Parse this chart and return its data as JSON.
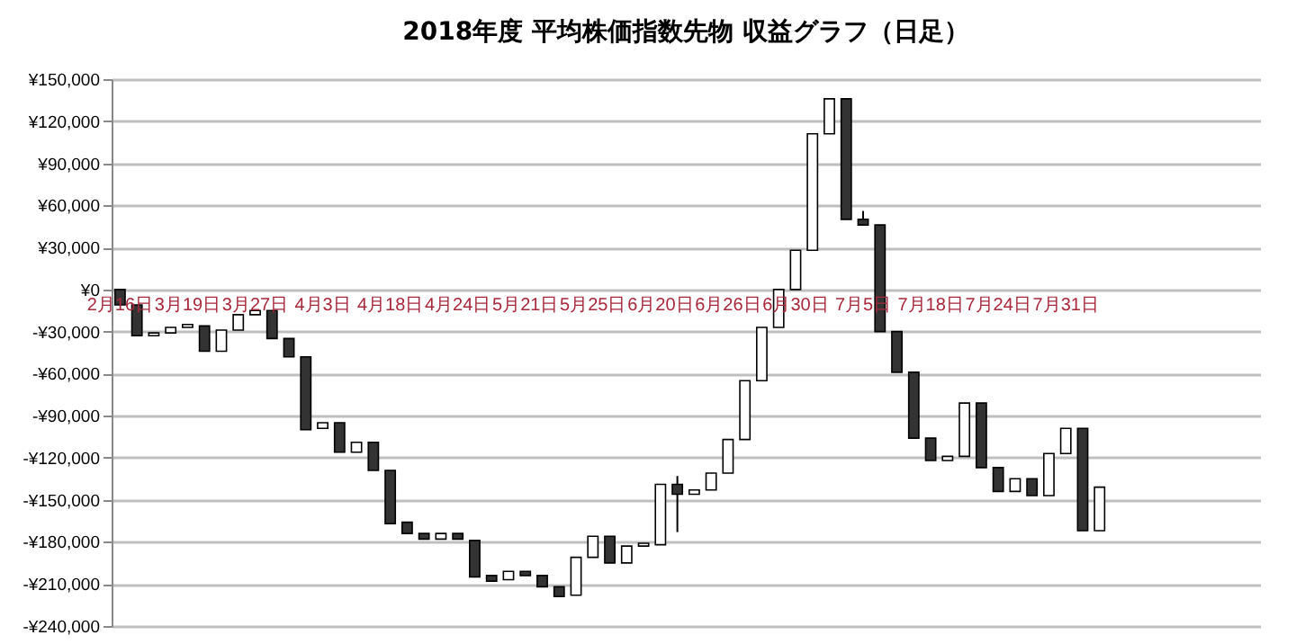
{
  "chart_data": {
    "type": "candlestick",
    "title": "2018年度 平均株価指数先物 収益グラフ（日足）",
    "categories": [
      "2月16日",
      null,
      null,
      null,
      "3月19日",
      null,
      null,
      null,
      "3月27日",
      null,
      null,
      null,
      "4月3日",
      null,
      null,
      null,
      "4月18日",
      null,
      null,
      null,
      "4月24日",
      null,
      null,
      null,
      "5月21日",
      null,
      null,
      null,
      "5月25日",
      null,
      null,
      null,
      "6月20日",
      null,
      null,
      null,
      "6月26日",
      null,
      null,
      null,
      "6月30日",
      null,
      null,
      null,
      "7月5日",
      null,
      null,
      null,
      "7月18日",
      null,
      null,
      null,
      "7月24日",
      null,
      null,
      null,
      "7月31日",
      null,
      null,
      null,
      null,
      null,
      null,
      null,
      null,
      null,
      null,
      null
    ],
    "ohlc": [
      [
        0,
        0,
        -11000,
        -11000
      ],
      [
        -11000,
        -11000,
        -33000,
        -33000
      ],
      [
        -33000,
        -31000,
        -33000,
        -31000
      ],
      [
        -31000,
        -27000,
        -31000,
        -27000
      ],
      [
        -27000,
        -25000,
        -27000,
        -25000
      ],
      [
        -26000,
        -26000,
        -44000,
        -44000
      ],
      [
        -44000,
        -29000,
        -44000,
        -29000
      ],
      [
        -29000,
        -18000,
        -29000,
        -18000
      ],
      [
        -18000,
        -15000,
        -18000,
        -15000
      ],
      [
        -15000,
        -15000,
        -35000,
        -35000
      ],
      [
        -35000,
        -35000,
        -48000,
        -48000
      ],
      [
        -48000,
        -48000,
        -100000,
        -100000
      ],
      [
        -99000,
        -95000,
        -99000,
        -95000
      ],
      [
        -95000,
        -95000,
        -116000,
        -116000
      ],
      [
        -116000,
        -109000,
        -116000,
        -109000
      ],
      [
        -109000,
        -109000,
        -129000,
        -129000
      ],
      [
        -129000,
        -129000,
        -167000,
        -167000
      ],
      [
        -166000,
        -166000,
        -174000,
        -174000
      ],
      [
        -174000,
        -174000,
        -178000,
        -178000
      ],
      [
        -178000,
        -174000,
        -178000,
        -174000
      ],
      [
        -174000,
        -174000,
        -178000,
        -178000
      ],
      [
        -179000,
        -179000,
        -205000,
        -205000
      ],
      [
        -204000,
        -204000,
        -208000,
        -208000
      ],
      [
        -207000,
        -201000,
        -207000,
        -201000
      ],
      [
        -201000,
        -201000,
        -204000,
        -204000
      ],
      [
        -204000,
        -204000,
        -212000,
        -212000
      ],
      [
        -212000,
        -212000,
        -219000,
        -219000
      ],
      [
        -218000,
        -191000,
        -218000,
        -191000
      ],
      [
        -191000,
        -176000,
        -191000,
        -176000
      ],
      [
        -176000,
        -176000,
        -195000,
        -195000
      ],
      [
        -195000,
        -183000,
        -195000,
        -183000
      ],
      [
        -183000,
        -181000,
        -183000,
        -181000
      ],
      [
        -182000,
        -139000,
        -182000,
        -139000
      ],
      [
        -139000,
        -133000,
        -173000,
        -146000
      ],
      [
        -146000,
        -143000,
        -146000,
        -143000
      ],
      [
        -143000,
        -131000,
        -143000,
        -131000
      ],
      [
        -131000,
        -107000,
        -131000,
        -107000
      ],
      [
        -107000,
        -65000,
        -107000,
        -65000
      ],
      [
        -65000,
        -27000,
        -65000,
        -27000
      ],
      [
        -27000,
        0,
        -27000,
        0
      ],
      [
        0,
        28000,
        0,
        28000
      ],
      [
        28000,
        111000,
        28000,
        111000
      ],
      [
        111000,
        136000,
        111000,
        136000
      ],
      [
        136000,
        136000,
        50000,
        50000
      ],
      [
        50000,
        56000,
        46000,
        46000
      ],
      [
        46000,
        46000,
        -30000,
        -30000
      ],
      [
        -30000,
        -30000,
        -59000,
        -59000
      ],
      [
        -59000,
        -59000,
        -106000,
        -106000
      ],
      [
        -106000,
        -106000,
        -122000,
        -122000
      ],
      [
        -122000,
        -119000,
        -122000,
        -119000
      ],
      [
        -119000,
        -81000,
        -119000,
        -81000
      ],
      [
        -81000,
        -81000,
        -127000,
        -127000
      ],
      [
        -127000,
        -127000,
        -144000,
        -144000
      ],
      [
        -144000,
        -135000,
        -144000,
        -135000
      ],
      [
        -135000,
        -135000,
        -147000,
        -147000
      ],
      [
        -147000,
        -117000,
        -147000,
        -117000
      ],
      [
        -117000,
        -99000,
        -117000,
        -99000
      ],
      [
        -99000,
        -99000,
        -172000,
        -172000
      ],
      [
        -172000,
        -141000,
        -172000,
        -141000
      ],
      null,
      null,
      null,
      null,
      null,
      null,
      null,
      null,
      null
    ],
    "ylim": [
      -240000,
      150000
    ],
    "yticks": [
      {
        "value": 150000,
        "label": "¥150,000"
      },
      {
        "value": 120000,
        "label": "¥120,000"
      },
      {
        "value": 90000,
        "label": "¥90,000"
      },
      {
        "value": 60000,
        "label": "¥60,000"
      },
      {
        "value": 30000,
        "label": "¥30,000"
      },
      {
        "value": 0,
        "label": "¥0"
      },
      {
        "value": -30000,
        "label": "-¥30,000"
      },
      {
        "value": -60000,
        "label": "-¥60,000"
      },
      {
        "value": -90000,
        "label": "-¥90,000"
      },
      {
        "value": -120000,
        "label": "-¥120,000"
      },
      {
        "value": -150000,
        "label": "-¥150,000"
      },
      {
        "value": -180000,
        "label": "-¥180,000"
      },
      {
        "value": -210000,
        "label": "-¥210,000"
      },
      {
        "value": -240000,
        "label": "-¥240,000"
      }
    ],
    "grid": "y"
  }
}
